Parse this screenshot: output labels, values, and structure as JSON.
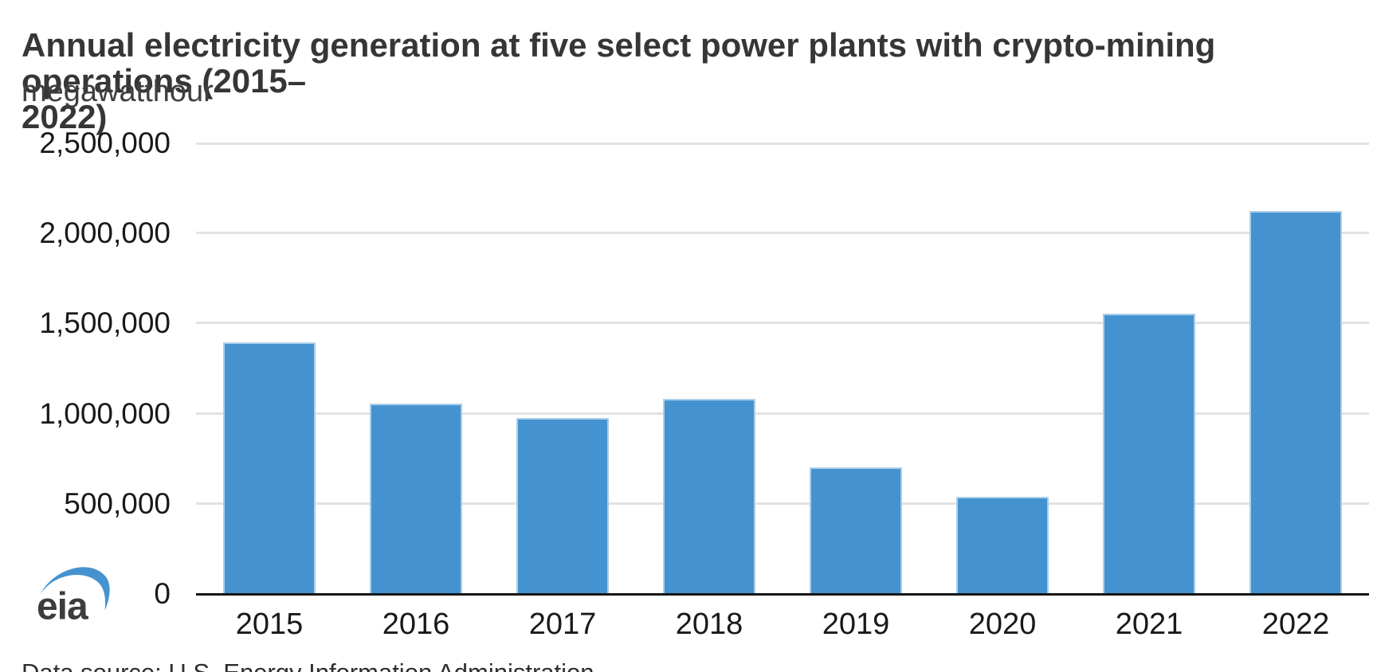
{
  "page": {
    "title_line1": "Annual electricity generation at five select power plants with crypto-mining operations (2015–",
    "title_line2": "2022)",
    "subtitle": "megawatthour",
    "footer": "Data source: U.S. Energy Information Administration"
  },
  "logo": {
    "text": "eia"
  },
  "colors": {
    "bar": "#4493d0",
    "gridline": "#e2e2e2",
    "axis_line": "#161616",
    "title_text": "#363636",
    "tick_text": "#191919",
    "logo_swoosh": "#4493d0",
    "logo_text": "#3d3d3d"
  },
  "chart_data": {
    "type": "bar",
    "title": "Annual electricity generation at five select power plants with crypto-mining operations (2015–2022)",
    "subtitle": "megawatthour",
    "xlabel": "",
    "ylabel": "megawatthour",
    "categories": [
      "2015",
      "2016",
      "2017",
      "2018",
      "2019",
      "2020",
      "2021",
      "2022"
    ],
    "values": [
      1390000,
      1050000,
      970000,
      1080000,
      700000,
      535000,
      1550000,
      2120000
    ],
    "ylim": [
      0,
      2500000
    ],
    "y_ticks": [
      {
        "value": 0,
        "label": "0"
      },
      {
        "value": 500000,
        "label": "500,000"
      },
      {
        "value": 1000000,
        "label": "1,000,000"
      },
      {
        "value": 1500000,
        "label": "1,500,000"
      },
      {
        "value": 2000000,
        "label": "2,000,000"
      },
      {
        "value": 2500000,
        "label": "2,500,000"
      }
    ],
    "grid": true,
    "legend": false,
    "source_note": "Data source: U.S. Energy Information Administration"
  }
}
